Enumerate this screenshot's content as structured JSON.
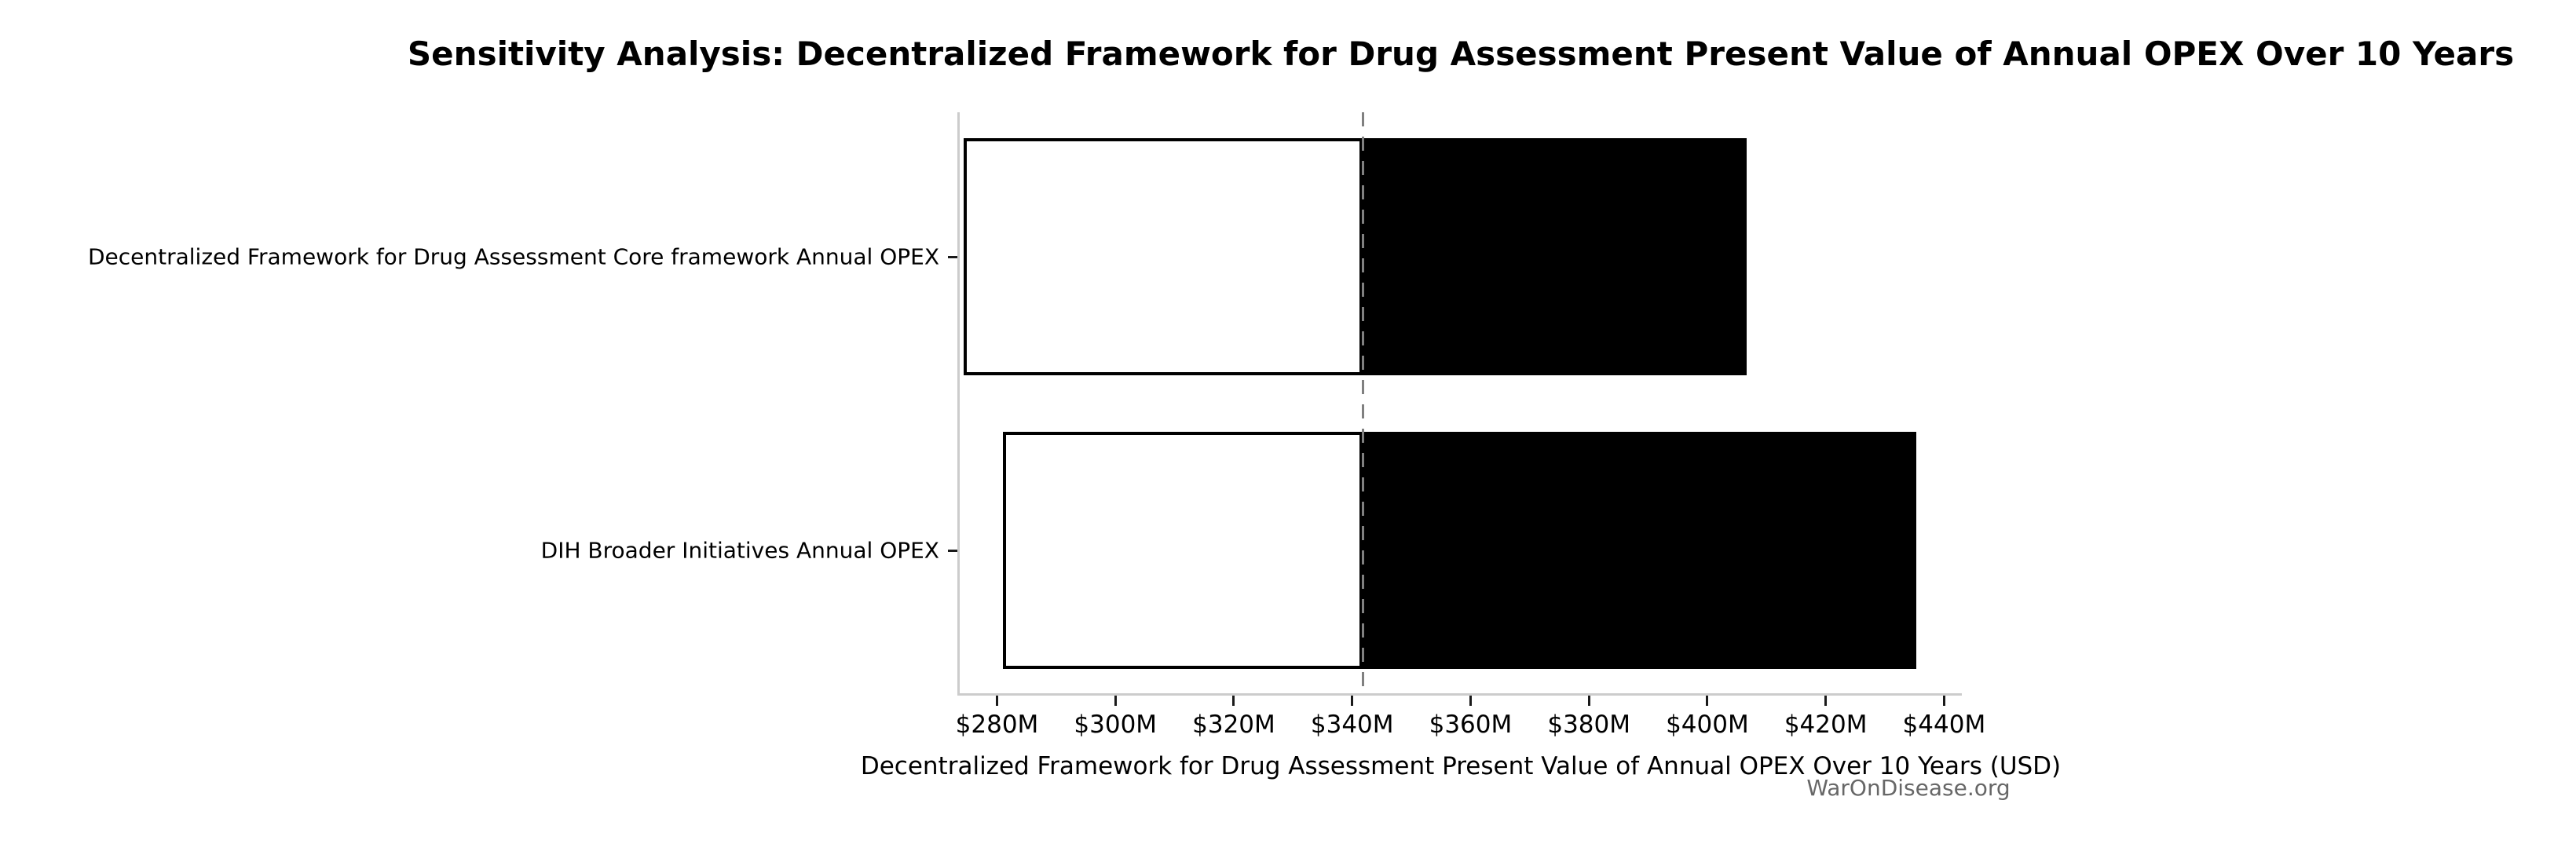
{
  "watermark": "WarOnDisease.org",
  "colors": {
    "background": "#ffffff",
    "bar_low_fill": "#ffffff",
    "bar_high_fill": "#000000",
    "bar_edge": "#000000",
    "baseline_line": "#808080",
    "spine": "#cccccc",
    "tick_mark": "#1a1a1a",
    "text": "#000000",
    "watermark_text": "#4d4d4d"
  },
  "chart_data": {
    "type": "bar",
    "subtype": "tornado-sensitivity",
    "orientation": "horizontal",
    "title": "Sensitivity Analysis: Decentralized Framework for Drug Assessment Present Value of Annual OPEX Over 10 Years",
    "xlabel": "Decentralized Framework for Drug Assessment Present Value of Annual OPEX Over 10 Years (USD)",
    "ylabel": "",
    "unit": "USD millions",
    "categories": [
      "Decentralized Framework for Drug Assessment Core framework Annual OPEX",
      "DIH Broader Initiatives Annual OPEX"
    ],
    "baseline_value": 341.8,
    "baseline_style": "dashed",
    "bars": [
      {
        "label": "Decentralized Framework for Drug Assessment Core framework Annual OPEX",
        "low": 274.3,
        "high": 406.6
      },
      {
        "label": "DIH Broader Initiatives Annual OPEX",
        "low": 281.0,
        "high": 435.3
      }
    ],
    "series": [
      {
        "name": "low-side (white segment)",
        "values": [
          274.3,
          281.0
        ]
      },
      {
        "name": "high-side (black segment)",
        "values": [
          406.6,
          435.3
        ]
      }
    ],
    "xlim": [
      273.7,
      443.0
    ],
    "x_tick_values": [
      280,
      300,
      320,
      340,
      360,
      380,
      400,
      420,
      440
    ],
    "x_tick_labels": [
      "$280M",
      "$300M",
      "$320M",
      "$340M",
      "$360M",
      "$380M",
      "$400M",
      "$420M",
      "$440M"
    ],
    "grid": false,
    "legend": null
  }
}
